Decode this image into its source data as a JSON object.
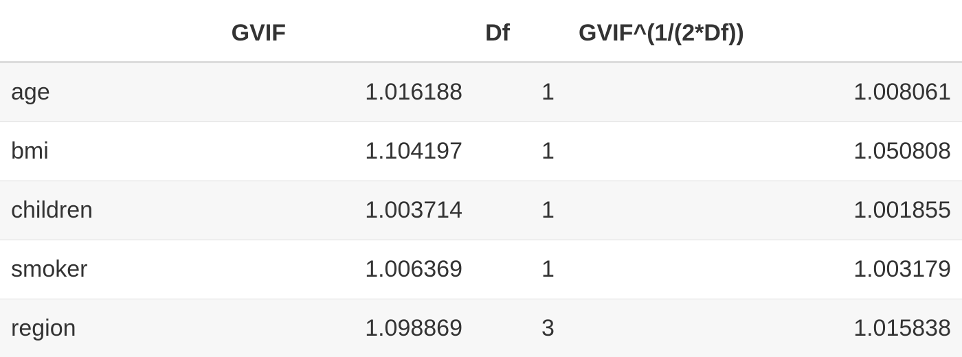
{
  "table": {
    "headers": {
      "name": "",
      "gvif": "GVIF",
      "df": "Df",
      "adjusted": "GVIF^(1/(2*Df))"
    },
    "rows": [
      {
        "name": "age",
        "gvif": "1.016188",
        "df": "1",
        "adjusted": "1.008061"
      },
      {
        "name": "bmi",
        "gvif": "1.104197",
        "df": "1",
        "adjusted": "1.050808"
      },
      {
        "name": "children",
        "gvif": "1.003714",
        "df": "1",
        "adjusted": "1.001855"
      },
      {
        "name": "smoker",
        "gvif": "1.006369",
        "df": "1",
        "adjusted": "1.003179"
      },
      {
        "name": "region",
        "gvif": "1.098869",
        "df": "3",
        "adjusted": "1.015838"
      }
    ],
    "colors": {
      "text": "#333333",
      "stripe": "#f7f7f7",
      "border": "#dcdcdc"
    }
  }
}
